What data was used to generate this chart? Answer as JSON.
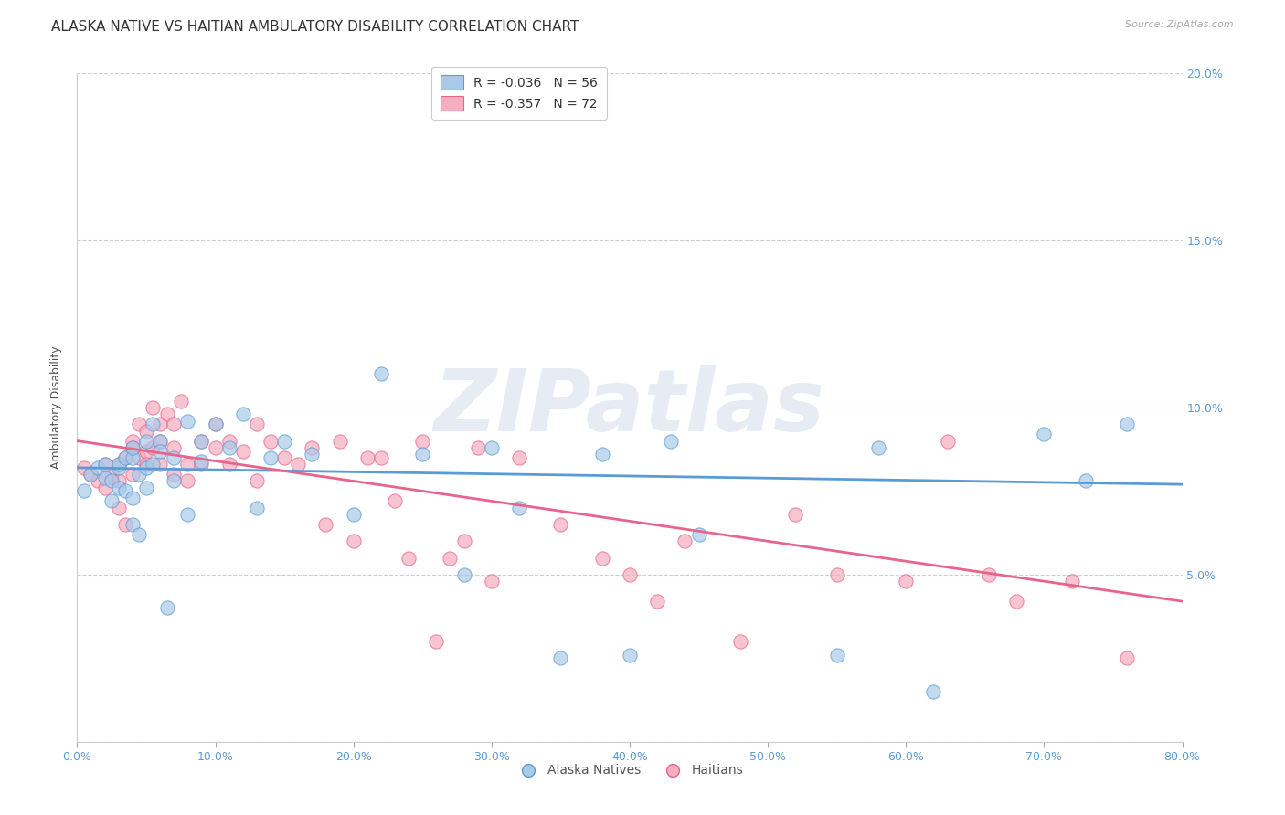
{
  "title": "ALASKA NATIVE VS HAITIAN AMBULATORY DISABILITY CORRELATION CHART",
  "source": "Source: ZipAtlas.com",
  "ylabel": "Ambulatory Disability",
  "xlim": [
    0.0,
    0.8
  ],
  "ylim": [
    0.0,
    0.2
  ],
  "watermark": "ZIPatlas",
  "legend_alaska": "R = -0.036   N = 56",
  "legend_haitian": "R = -0.357   N = 72",
  "alaska_color": "#aac9e8",
  "haitian_color": "#f5adc0",
  "alaska_line_color": "#5b9bd5",
  "haitian_line_color": "#e8648a",
  "background_color": "#ffffff",
  "grid_color": "#c8c8c8",
  "title_fontsize": 11,
  "axis_label_fontsize": 9,
  "tick_fontsize": 9,
  "tick_color": "#5b9bd5",
  "alaska_scatter_x": [
    0.005,
    0.01,
    0.015,
    0.02,
    0.02,
    0.025,
    0.025,
    0.03,
    0.03,
    0.03,
    0.035,
    0.035,
    0.04,
    0.04,
    0.04,
    0.04,
    0.045,
    0.045,
    0.05,
    0.05,
    0.05,
    0.055,
    0.055,
    0.06,
    0.06,
    0.065,
    0.07,
    0.07,
    0.08,
    0.08,
    0.09,
    0.09,
    0.1,
    0.11,
    0.12,
    0.13,
    0.14,
    0.15,
    0.17,
    0.2,
    0.22,
    0.25,
    0.28,
    0.3,
    0.32,
    0.35,
    0.38,
    0.4,
    0.43,
    0.45,
    0.55,
    0.58,
    0.62,
    0.7,
    0.73,
    0.76
  ],
  "alaska_scatter_y": [
    0.075,
    0.08,
    0.082,
    0.079,
    0.083,
    0.078,
    0.072,
    0.082,
    0.076,
    0.083,
    0.085,
    0.075,
    0.085,
    0.073,
    0.088,
    0.065,
    0.08,
    0.062,
    0.082,
    0.09,
    0.076,
    0.083,
    0.095,
    0.09,
    0.087,
    0.04,
    0.085,
    0.078,
    0.096,
    0.068,
    0.084,
    0.09,
    0.095,
    0.088,
    0.098,
    0.07,
    0.085,
    0.09,
    0.086,
    0.068,
    0.11,
    0.086,
    0.05,
    0.088,
    0.07,
    0.025,
    0.086,
    0.026,
    0.09,
    0.062,
    0.026,
    0.088,
    0.015,
    0.092,
    0.078,
    0.095
  ],
  "haitian_scatter_x": [
    0.005,
    0.01,
    0.015,
    0.02,
    0.02,
    0.025,
    0.03,
    0.03,
    0.03,
    0.035,
    0.035,
    0.04,
    0.04,
    0.04,
    0.045,
    0.045,
    0.05,
    0.05,
    0.05,
    0.055,
    0.055,
    0.06,
    0.06,
    0.06,
    0.065,
    0.07,
    0.07,
    0.07,
    0.075,
    0.08,
    0.08,
    0.09,
    0.09,
    0.1,
    0.1,
    0.11,
    0.11,
    0.12,
    0.13,
    0.13,
    0.14,
    0.15,
    0.16,
    0.17,
    0.18,
    0.19,
    0.2,
    0.21,
    0.22,
    0.23,
    0.24,
    0.25,
    0.26,
    0.27,
    0.28,
    0.29,
    0.3,
    0.32,
    0.35,
    0.38,
    0.4,
    0.42,
    0.44,
    0.48,
    0.52,
    0.55,
    0.6,
    0.63,
    0.66,
    0.68,
    0.72,
    0.76
  ],
  "haitian_scatter_y": [
    0.082,
    0.08,
    0.078,
    0.083,
    0.076,
    0.08,
    0.083,
    0.078,
    0.07,
    0.085,
    0.065,
    0.09,
    0.088,
    0.08,
    0.095,
    0.085,
    0.093,
    0.087,
    0.083,
    0.1,
    0.088,
    0.095,
    0.09,
    0.083,
    0.098,
    0.095,
    0.088,
    0.08,
    0.102,
    0.083,
    0.078,
    0.09,
    0.083,
    0.088,
    0.095,
    0.09,
    0.083,
    0.087,
    0.095,
    0.078,
    0.09,
    0.085,
    0.083,
    0.088,
    0.065,
    0.09,
    0.06,
    0.085,
    0.085,
    0.072,
    0.055,
    0.09,
    0.03,
    0.055,
    0.06,
    0.088,
    0.048,
    0.085,
    0.065,
    0.055,
    0.05,
    0.042,
    0.06,
    0.03,
    0.068,
    0.05,
    0.048,
    0.09,
    0.05,
    0.042,
    0.048,
    0.025
  ],
  "alaska_trend": [
    0.082,
    0.077
  ],
  "haitian_trend": [
    0.09,
    0.042
  ]
}
